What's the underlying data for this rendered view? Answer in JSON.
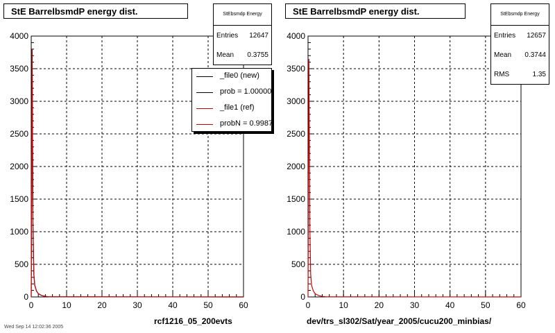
{
  "left": {
    "title": "StE BarrelbsmdP energy dist.",
    "stats": {
      "name": "StEbsmdp Energy",
      "rows": [
        {
          "label": "Entries",
          "value": "12647"
        },
        {
          "label": "Mean",
          "value": "0.3755"
        }
      ]
    },
    "legend": [
      {
        "label": "_file0 (new)",
        "color": "#000000"
      },
      {
        "label": "prob = 1.000000",
        "color": "#000000"
      },
      {
        "label": "_file1 (ref)",
        "color": "#cc0000"
      },
      {
        "label": "probN = 0.998720",
        "color": "#cc0000"
      }
    ],
    "footer": "rcf1216_05_200evts"
  },
  "right": {
    "title": "StE BarrelbsmdP energy dist.",
    "stats": {
      "name": "StEbsmdp Energy",
      "rows": [
        {
          "label": "Entries",
          "value": "12657"
        },
        {
          "label": "Mean",
          "value": "0.3744"
        },
        {
          "label": "RMS",
          "value": "1.35"
        }
      ]
    },
    "footer": "dev/trs_sl302/Sat/year_2005/cucu200_minbias/"
  },
  "corner_note": "Wed Sep 14 12:02:36 2005",
  "chart_data": [
    {
      "type": "line",
      "title": "StE BarrelbsmdP energy dist.",
      "xlabel": "",
      "ylabel": "",
      "xlim": [
        0,
        60
      ],
      "ylim": [
        0,
        4000
      ],
      "xticks": [
        0,
        10,
        20,
        30,
        40,
        50,
        60
      ],
      "yticks": [
        0,
        500,
        1000,
        1500,
        2000,
        2500,
        3000,
        3500,
        4000
      ],
      "grid": true,
      "series": [
        {
          "name": "_file0 (new)",
          "color": "#000000",
          "x": [
            0,
            0.25,
            0.5,
            0.75,
            1,
            1.5,
            2,
            3,
            4,
            5,
            60
          ],
          "y": [
            0,
            3800,
            1100,
            350,
            180,
            90,
            50,
            20,
            8,
            2,
            0
          ]
        },
        {
          "name": "_file1 (ref)",
          "color": "#cc0000",
          "x": [
            0,
            0.25,
            0.5,
            0.75,
            1,
            1.5,
            2,
            3,
            4,
            5,
            60
          ],
          "y": [
            0,
            3800,
            1100,
            350,
            180,
            90,
            50,
            20,
            8,
            2,
            0
          ]
        }
      ]
    },
    {
      "type": "line",
      "title": "StE BarrelbsmdP energy dist.",
      "xlabel": "",
      "ylabel": "",
      "xlim": [
        0,
        60
      ],
      "ylim": [
        0,
        4000
      ],
      "xticks": [
        0,
        10,
        20,
        30,
        40,
        50,
        60
      ],
      "yticks": [
        0,
        500,
        1000,
        1500,
        2000,
        2500,
        3000,
        3500,
        4000
      ],
      "grid": true,
      "series": [
        {
          "color": "#cc0000",
          "x": [
            0,
            0.25,
            0.5,
            0.75,
            1,
            1.5,
            2,
            3,
            4,
            5,
            60
          ],
          "y": [
            0,
            3650,
            1100,
            350,
            180,
            90,
            50,
            20,
            8,
            2,
            0
          ]
        }
      ]
    }
  ]
}
